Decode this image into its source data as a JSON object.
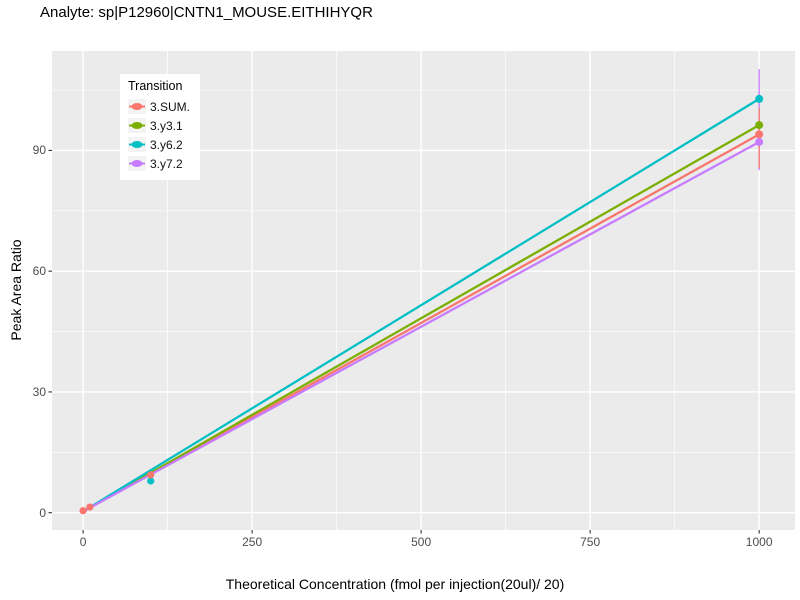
{
  "chart_data": {
    "type": "line",
    "title": "Analyte: sp|P12960|CNTN1_MOUSE.EITHIHYQR",
    "xlabel": "Theoretical Concentration (fmol per injection(20ul)/ 20)",
    "ylabel": "Peak Area Ratio",
    "x_ticks": [
      0,
      250,
      500,
      750,
      1000
    ],
    "y_ticks": [
      0,
      30,
      60,
      90
    ],
    "x_minor_ticks": [
      125,
      375,
      625,
      875
    ],
    "y_minor_ticks": [
      15,
      45,
      75,
      105
    ],
    "xlim": [
      -46,
      1053
    ],
    "ylim": [
      -4.3,
      114.7
    ],
    "grid": true,
    "panel_background": "#EBEBEB",
    "gridline_color": "#FFFFFF",
    "axis_text_color": "#4D4D4D",
    "tick_color": "#333333",
    "legend": {
      "title": "Transition",
      "position": "inside top-left",
      "background": "#FFFFFF"
    },
    "series": [
      {
        "name": "3.SUM.",
        "color": "#F8766D",
        "line": [
          [
            0,
            0.3
          ],
          [
            1000,
            94.0
          ]
        ],
        "points": [
          [
            0,
            0.5
          ],
          [
            10,
            1.4
          ],
          [
            100,
            9.4
          ],
          [
            1000,
            94.0
          ]
        ],
        "error_bars": [
          {
            "x": 1000,
            "ymin": 85.6,
            "ymax": 100.5
          }
        ]
      },
      {
        "name": "3.y3.1",
        "color": "#7CAE00",
        "line": [
          [
            0,
            0.3
          ],
          [
            1000,
            96.3
          ]
        ],
        "points": [
          [
            1000,
            96.3
          ]
        ],
        "error_bars": []
      },
      {
        "name": "3.y6.2",
        "color": "#00BFC4",
        "line": [
          [
            0,
            0.3
          ],
          [
            1000,
            102.8
          ]
        ],
        "points": [
          [
            100,
            7.9
          ],
          [
            1000,
            102.8
          ]
        ],
        "error_bars": [
          {
            "x": 100,
            "ymin": 7.1,
            "ymax": 10.6
          }
        ]
      },
      {
        "name": "3.y7.2",
        "color": "#C77CFF",
        "line": [
          [
            0,
            0.3
          ],
          [
            1000,
            92.1
          ]
        ],
        "points": [
          [
            1000,
            92.1
          ]
        ],
        "error_bars": [
          {
            "x": 1000,
            "ymin": 85.1,
            "ymax": 110.2
          }
        ]
      }
    ]
  }
}
